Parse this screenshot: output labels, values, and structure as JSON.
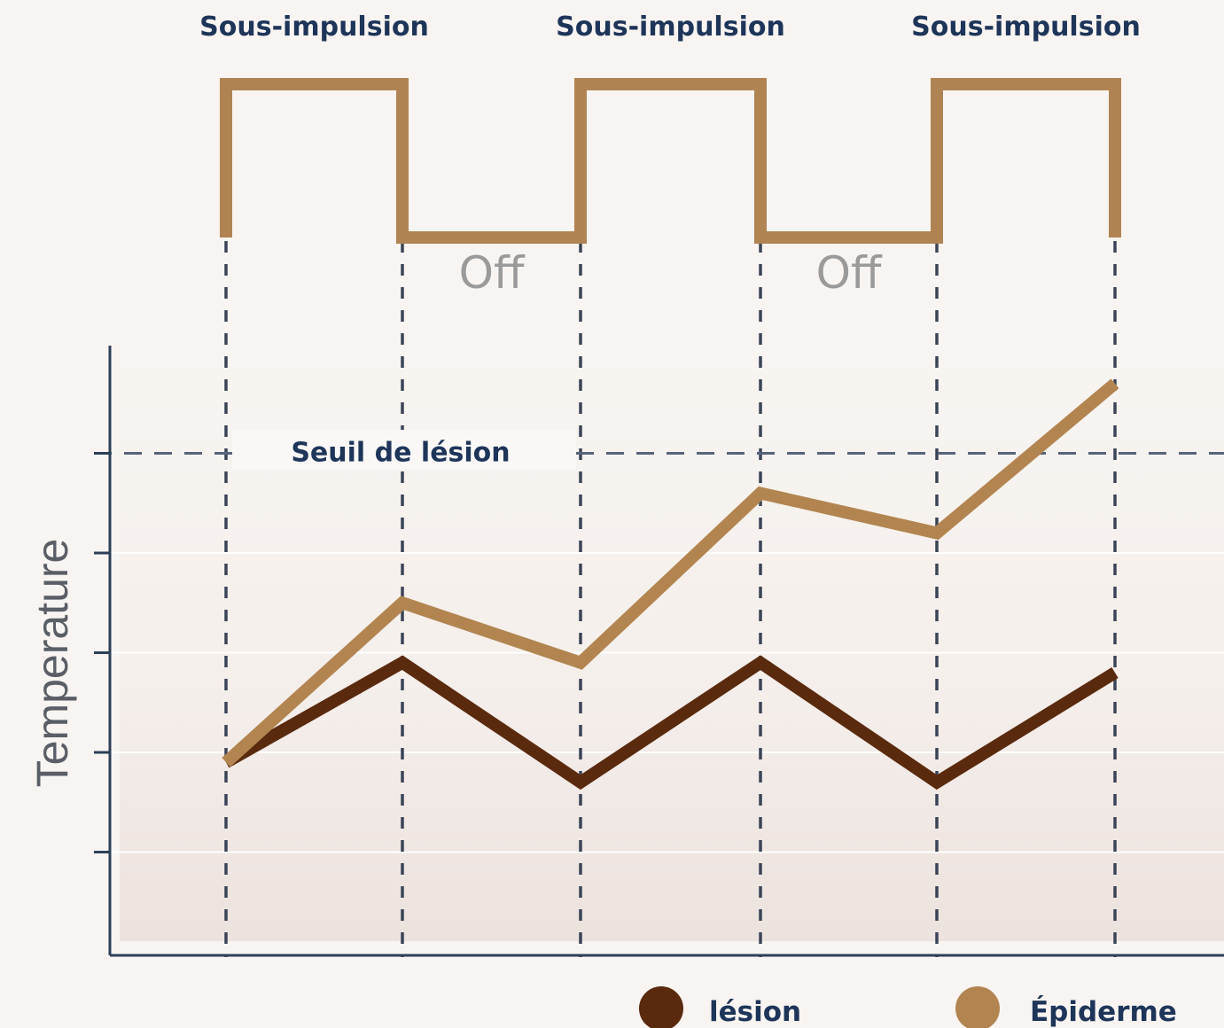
{
  "chart_data": {
    "type": "line",
    "title": "",
    "xlabel": "",
    "ylabel": "Temperature",
    "x": [
      0,
      1,
      2,
      3,
      4,
      5
    ],
    "ylim": [
      0,
      6
    ],
    "grid": true,
    "legend_position": "bottom-right",
    "pulse_phases": [
      {
        "label": "Sous-impulsion",
        "start": 0,
        "end": 1
      },
      {
        "label": "Off",
        "start": 1,
        "end": 2
      },
      {
        "label": "Sous-impulsion",
        "start": 2,
        "end": 3
      },
      {
        "label": "Off",
        "start": 3,
        "end": 4
      },
      {
        "label": "Sous-impulsion",
        "start": 4,
        "end": 5
      }
    ],
    "threshold": {
      "label": "Seuil de lésion",
      "value": 5
    },
    "series": [
      {
        "name": "lésion",
        "color": "#5a2a0e",
        "values": [
          1.9,
          2.9,
          1.7,
          2.9,
          1.7,
          2.8
        ]
      },
      {
        "name": "Épiderme",
        "color": "#b28550",
        "values": [
          1.9,
          3.5,
          2.9,
          4.6,
          4.2,
          5.7
        ]
      }
    ]
  },
  "colors": {
    "pulse_line": "#b08452",
    "axis": "#2c3f57",
    "dash": "#3a4456"
  }
}
